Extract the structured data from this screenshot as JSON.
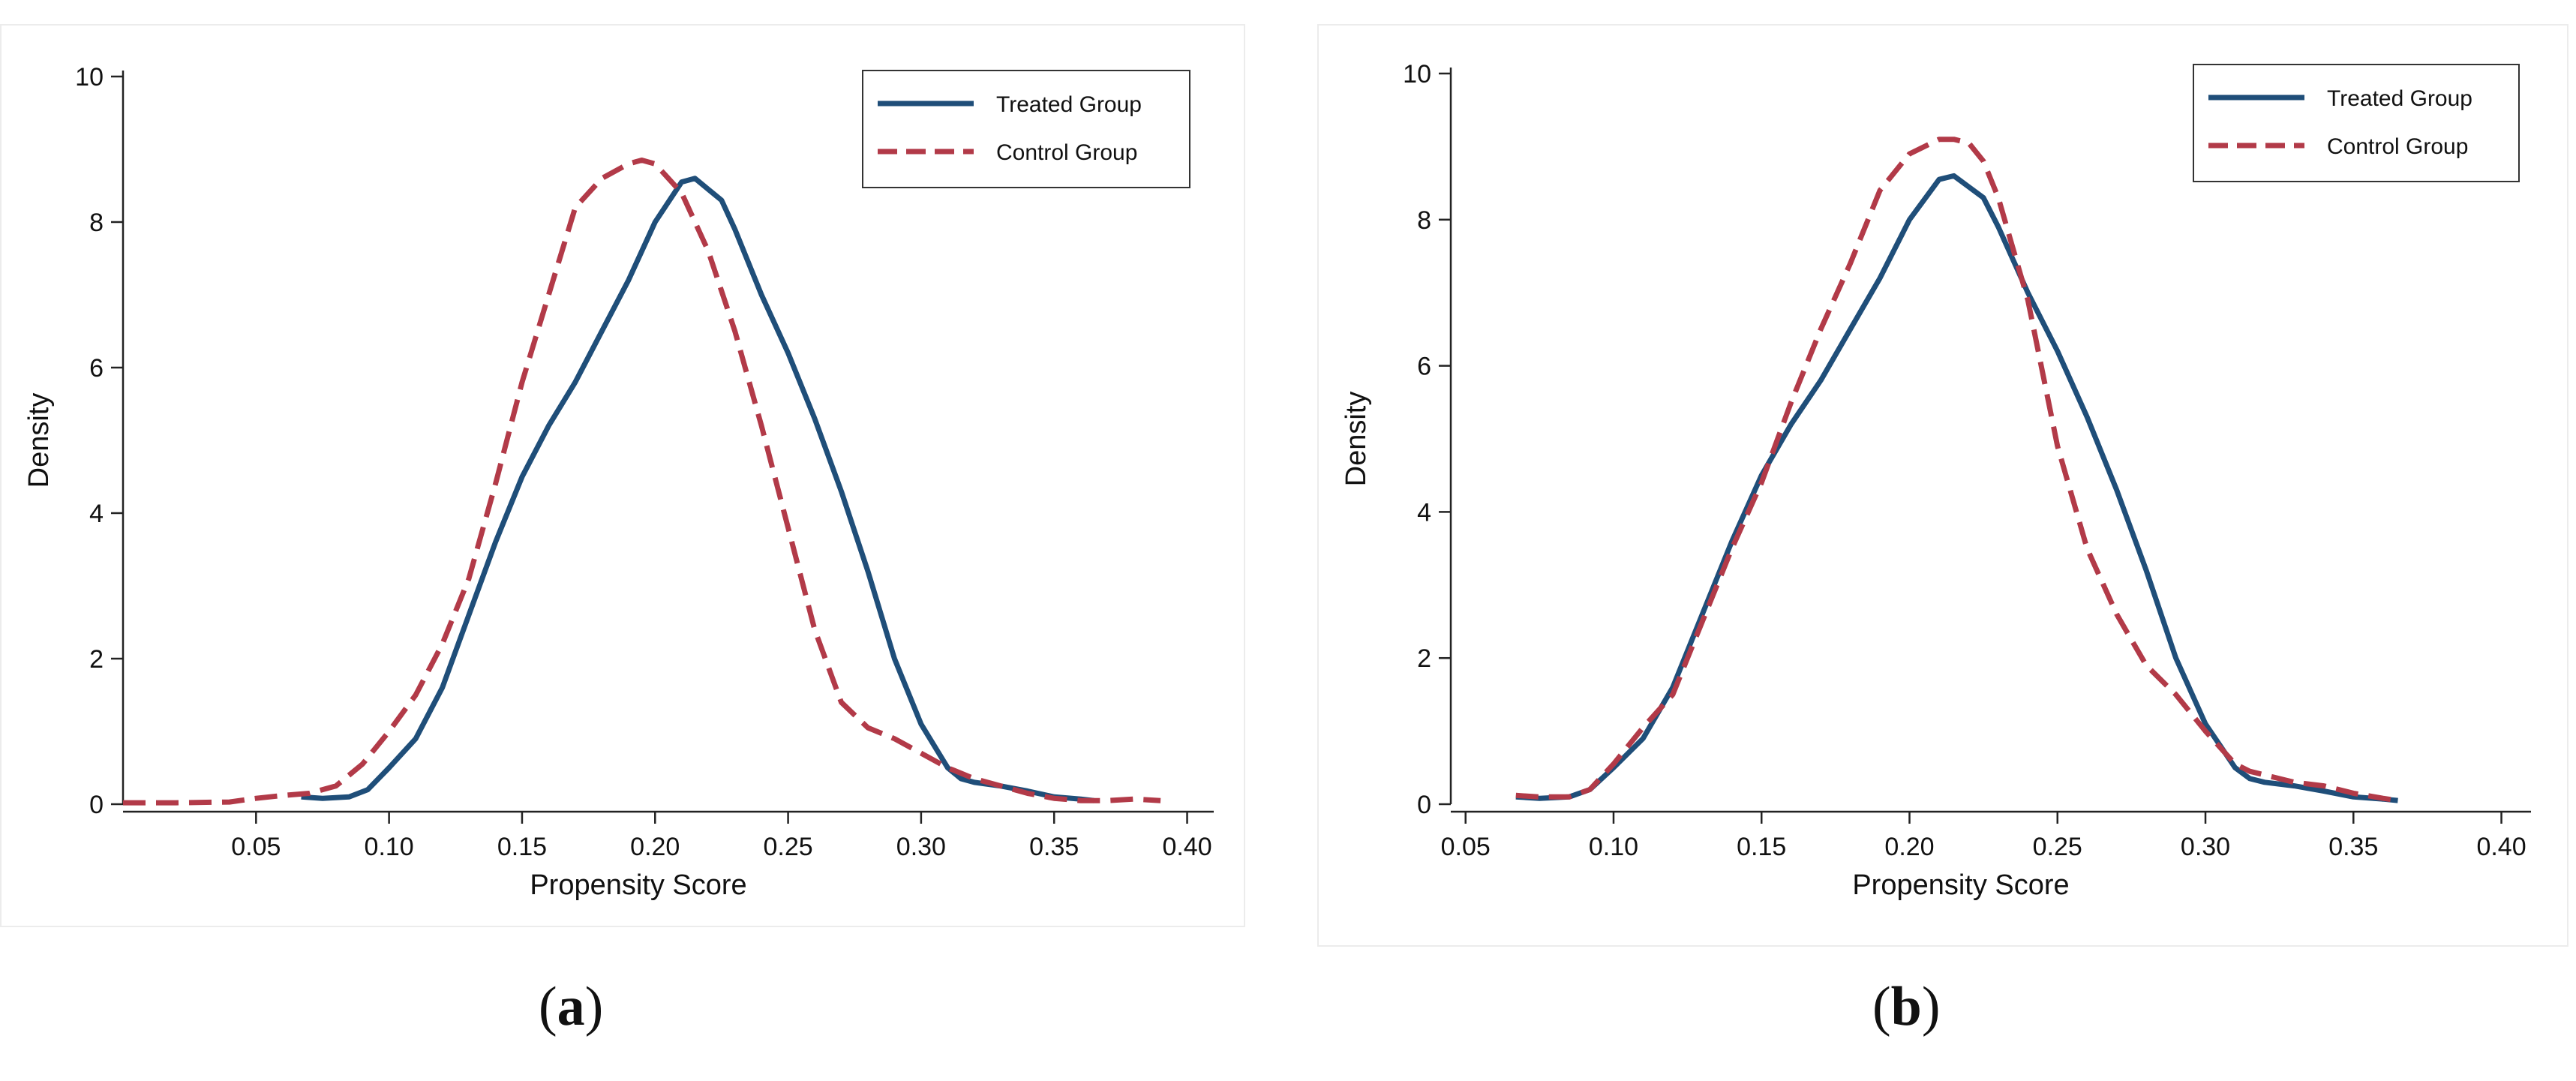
{
  "colors": {
    "treated": "#1f4e79",
    "control": "#b23a48",
    "axis": "#222222",
    "panel_border": "#ececec"
  },
  "figure": {
    "panels": [
      {
        "id": "a",
        "caption_open": "(",
        "caption_letter": "a",
        "caption_close": ")"
      },
      {
        "id": "b",
        "caption_open": "(",
        "caption_letter": "b",
        "caption_close": ")"
      }
    ]
  },
  "chart_data": [
    {
      "type": "line",
      "panel": "a",
      "title": "",
      "xlabel": "Propensity Score",
      "ylabel": "Density",
      "xlim": [
        0.0,
        0.41
      ],
      "ylim": [
        0,
        10
      ],
      "x_ticks": [
        0.05,
        0.1,
        0.15,
        0.2,
        0.25,
        0.3,
        0.35,
        0.4
      ],
      "x_tick_labels": [
        "0.05",
        "0.10",
        "0.15",
        "0.20",
        "0.25",
        "0.30",
        "0.35",
        "0.40"
      ],
      "y_ticks": [
        0,
        2,
        4,
        6,
        8,
        10
      ],
      "y_tick_labels": [
        "0",
        "2",
        "4",
        "6",
        "8",
        "10"
      ],
      "grid": false,
      "legend_position": "top-right",
      "series": [
        {
          "name": "Treated Group",
          "style": "solid",
          "x": [
            0.067,
            0.075,
            0.085,
            0.092,
            0.1,
            0.11,
            0.12,
            0.13,
            0.14,
            0.15,
            0.16,
            0.17,
            0.18,
            0.19,
            0.2,
            0.21,
            0.215,
            0.22,
            0.225,
            0.23,
            0.24,
            0.25,
            0.26,
            0.27,
            0.28,
            0.29,
            0.3,
            0.31,
            0.315,
            0.32,
            0.33,
            0.34,
            0.35,
            0.36,
            0.365
          ],
          "y": [
            0.1,
            0.08,
            0.1,
            0.2,
            0.5,
            0.9,
            1.6,
            2.6,
            3.6,
            4.5,
            5.2,
            5.8,
            6.5,
            7.2,
            8.0,
            8.55,
            8.6,
            8.45,
            8.3,
            7.9,
            7.0,
            6.2,
            5.3,
            4.3,
            3.2,
            2.0,
            1.1,
            0.5,
            0.35,
            0.3,
            0.25,
            0.18,
            0.1,
            0.07,
            0.05
          ]
        },
        {
          "name": "Control Group",
          "style": "dashed",
          "x": [
            0.0,
            0.02,
            0.04,
            0.05,
            0.06,
            0.07,
            0.08,
            0.09,
            0.1,
            0.11,
            0.12,
            0.13,
            0.14,
            0.15,
            0.16,
            0.17,
            0.18,
            0.19,
            0.195,
            0.2,
            0.21,
            0.22,
            0.23,
            0.24,
            0.25,
            0.26,
            0.27,
            0.28,
            0.29,
            0.3,
            0.31,
            0.32,
            0.33,
            0.34,
            0.35,
            0.36,
            0.37,
            0.38,
            0.39
          ],
          "y": [
            0.02,
            0.02,
            0.03,
            0.08,
            0.12,
            0.15,
            0.25,
            0.55,
            1.0,
            1.5,
            2.2,
            3.1,
            4.4,
            5.8,
            7.0,
            8.2,
            8.6,
            8.8,
            8.85,
            8.8,
            8.4,
            7.6,
            6.5,
            5.2,
            3.8,
            2.4,
            1.4,
            1.05,
            0.9,
            0.7,
            0.5,
            0.35,
            0.25,
            0.15,
            0.08,
            0.05,
            0.05,
            0.07,
            0.05
          ]
        }
      ]
    },
    {
      "type": "line",
      "panel": "b",
      "title": "",
      "xlabel": "Propensity Score",
      "ylabel": "Density",
      "xlim": [
        0.045,
        0.41
      ],
      "ylim": [
        0,
        10
      ],
      "x_ticks": [
        0.05,
        0.1,
        0.15,
        0.2,
        0.25,
        0.3,
        0.35,
        0.4
      ],
      "x_tick_labels": [
        "0.05",
        "0.10",
        "0.15",
        "0.20",
        "0.25",
        "0.30",
        "0.35",
        "0.40"
      ],
      "y_ticks": [
        0,
        2,
        4,
        6,
        8,
        10
      ],
      "y_tick_labels": [
        "0",
        "2",
        "4",
        "6",
        "8",
        "10"
      ],
      "grid": false,
      "legend_position": "top-right",
      "series": [
        {
          "name": "Treated Group",
          "style": "solid",
          "x": [
            0.067,
            0.075,
            0.085,
            0.092,
            0.1,
            0.11,
            0.12,
            0.13,
            0.14,
            0.15,
            0.16,
            0.17,
            0.18,
            0.19,
            0.2,
            0.21,
            0.215,
            0.22,
            0.225,
            0.23,
            0.24,
            0.25,
            0.26,
            0.27,
            0.28,
            0.29,
            0.3,
            0.31,
            0.315,
            0.32,
            0.33,
            0.34,
            0.35,
            0.36,
            0.365
          ],
          "y": [
            0.1,
            0.08,
            0.1,
            0.2,
            0.5,
            0.9,
            1.6,
            2.6,
            3.6,
            4.5,
            5.2,
            5.8,
            6.5,
            7.2,
            8.0,
            8.55,
            8.6,
            8.45,
            8.3,
            7.9,
            7.0,
            6.2,
            5.3,
            4.3,
            3.2,
            2.0,
            1.1,
            0.5,
            0.35,
            0.3,
            0.25,
            0.18,
            0.1,
            0.07,
            0.05
          ]
        },
        {
          "name": "Control Group",
          "style": "dashed",
          "x": [
            0.067,
            0.075,
            0.085,
            0.092,
            0.1,
            0.11,
            0.12,
            0.13,
            0.14,
            0.15,
            0.16,
            0.17,
            0.18,
            0.19,
            0.2,
            0.21,
            0.215,
            0.22,
            0.225,
            0.23,
            0.24,
            0.25,
            0.26,
            0.27,
            0.28,
            0.29,
            0.3,
            0.31,
            0.315,
            0.32,
            0.33,
            0.34,
            0.35,
            0.36,
            0.365
          ],
          "y": [
            0.12,
            0.1,
            0.1,
            0.2,
            0.55,
            1.05,
            1.5,
            2.5,
            3.5,
            4.4,
            5.5,
            6.5,
            7.4,
            8.4,
            8.9,
            9.1,
            9.1,
            9.05,
            8.8,
            8.3,
            6.9,
            4.9,
            3.5,
            2.6,
            1.9,
            1.5,
            1.0,
            0.55,
            0.45,
            0.4,
            0.3,
            0.25,
            0.15,
            0.08,
            0.05
          ]
        }
      ]
    }
  ]
}
